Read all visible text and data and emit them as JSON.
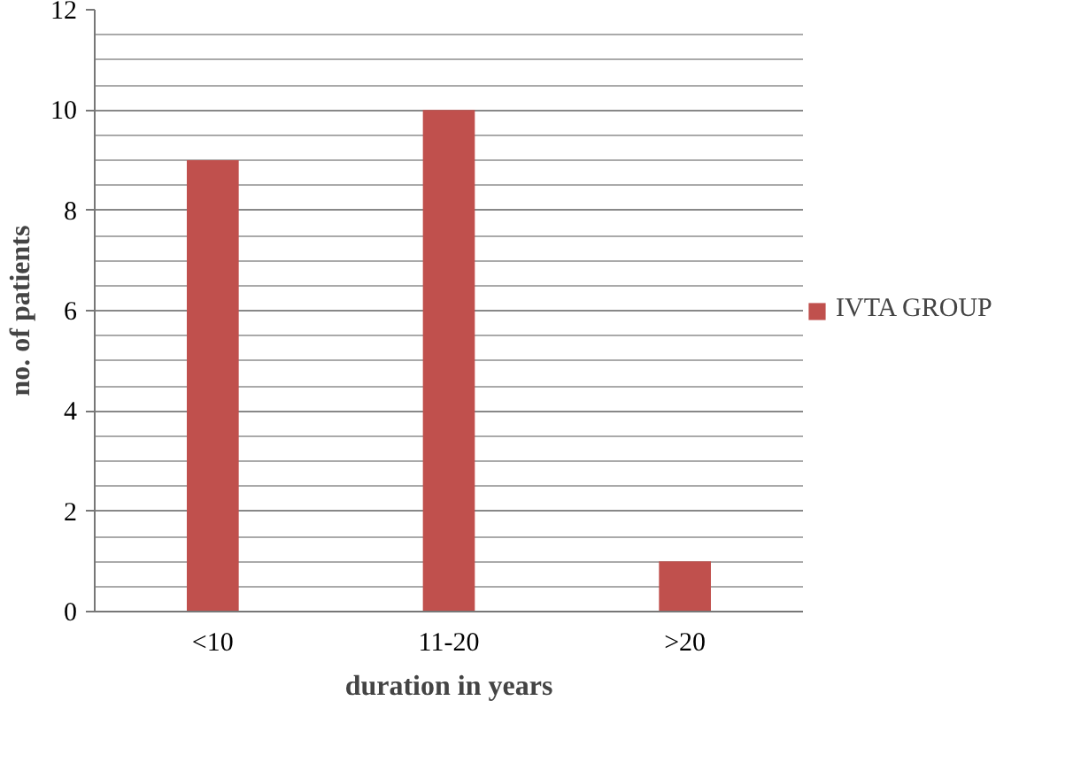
{
  "chart_data": {
    "type": "bar",
    "xlabel": "duration in years",
    "ylabel": "no. of patients",
    "categories": [
      "<10",
      "11-20",
      ">20"
    ],
    "series": [
      {
        "name": "IVTA GROUP",
        "color": "#c0504d",
        "values": [
          9,
          10,
          1
        ]
      }
    ],
    "ylim": [
      0,
      12
    ],
    "yticks": [
      0,
      2,
      4,
      6,
      8,
      10,
      12
    ],
    "grid": "y",
    "legend": "right"
  }
}
